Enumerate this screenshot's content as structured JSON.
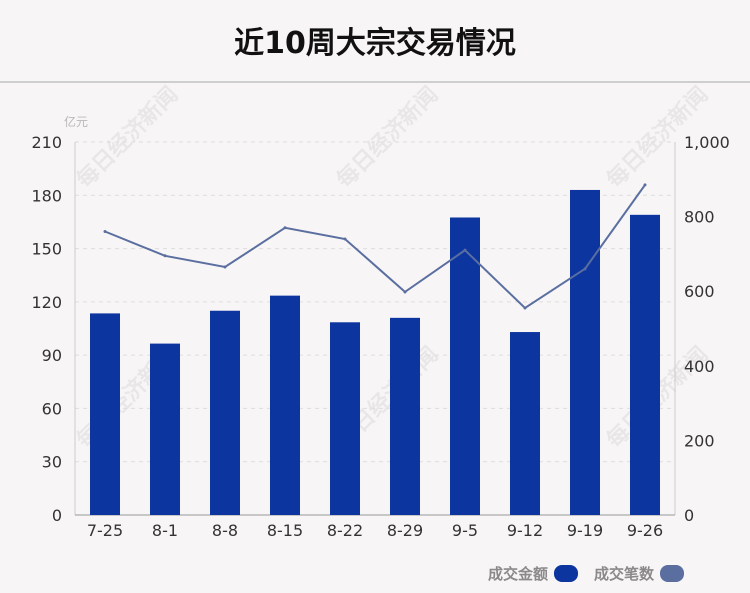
{
  "title": "近10周大宗交易情况",
  "watermark": "每日经济新闻",
  "colors": {
    "bar": "#0c35a0",
    "line": "#5a6fa0",
    "axis": "#333333",
    "grid": "#dddddd"
  },
  "legend": [
    {
      "label": "成交金额",
      "color": "#0c35a0"
    },
    {
      "label": "成交笔数",
      "color": "#5a6fa0"
    }
  ],
  "chart_data": {
    "type": "bar+line",
    "categories": [
      "7-25",
      "8-1",
      "8-8",
      "8-15",
      "8-22",
      "8-29",
      "9-5",
      "9-12",
      "9-19",
      "9-26"
    ],
    "series": [
      {
        "name": "成交金额",
        "type": "bar",
        "axis": "left",
        "values": [
          113.5,
          96.5,
          115,
          123.5,
          108.5,
          111,
          167.5,
          103,
          183,
          169
        ]
      },
      {
        "name": "成交笔数",
        "type": "line",
        "axis": "right",
        "values": [
          760,
          695,
          665,
          770,
          740,
          598,
          710,
          555,
          660,
          885
        ]
      }
    ],
    "y_left": {
      "label": "亿元",
      "ticks": [
        0,
        30,
        60,
        90,
        120,
        150,
        180,
        210
      ],
      "range": [
        0,
        210
      ]
    },
    "y_right": {
      "ticks": [
        "0",
        "200",
        "400",
        "600",
        "800",
        "1,000"
      ],
      "range": [
        0,
        1000
      ]
    },
    "grid": "dashed"
  }
}
